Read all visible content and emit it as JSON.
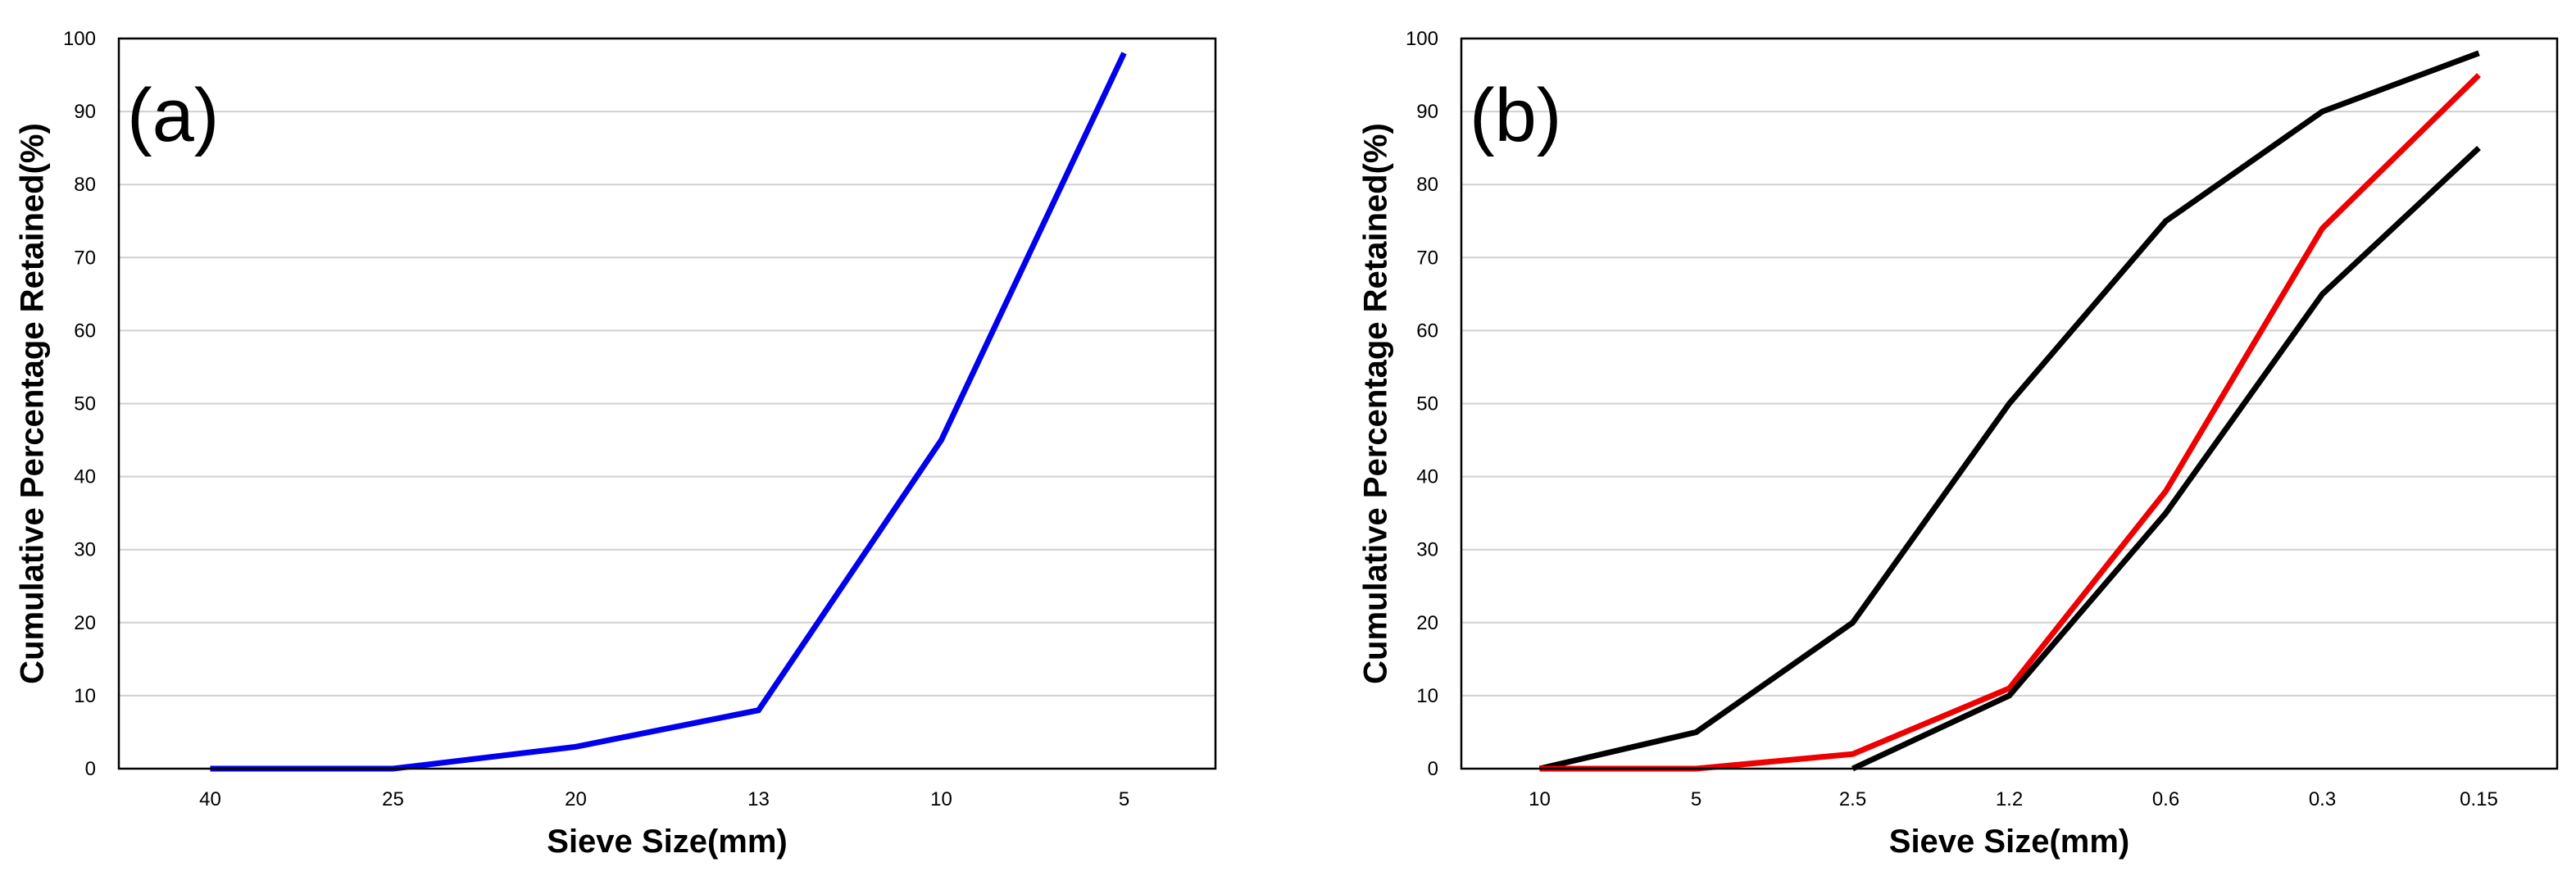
{
  "chart_data": [
    {
      "type": "line",
      "panel_label": "(a)",
      "xlabel": "Sieve Size(mm)",
      "ylabel": "Cumulative Percentage Retained(%)",
      "categories": [
        "40",
        "25",
        "20",
        "13",
        "10",
        "5"
      ],
      "ylim": [
        0,
        100
      ],
      "yticks": [
        0,
        10,
        20,
        30,
        40,
        50,
        60,
        70,
        80,
        90,
        100
      ],
      "grid": "horizontal",
      "series": [
        {
          "values": [
            0,
            0,
            3,
            8,
            45,
            98
          ],
          "color": "#0000ee"
        }
      ]
    },
    {
      "type": "line",
      "panel_label": "(b)",
      "xlabel": "Sieve Size(mm)",
      "ylabel": "Cumulative Percentage Retained(%)",
      "categories": [
        "10",
        "5",
        "2.5",
        "1.2",
        "0.6",
        "0.3",
        "0.15"
      ],
      "ylim": [
        0,
        100
      ],
      "yticks": [
        0,
        10,
        20,
        30,
        40,
        50,
        60,
        70,
        80,
        90,
        100
      ],
      "grid": "horizontal",
      "series": [
        {
          "values": [
            0,
            5,
            20,
            50,
            75,
            90,
            98
          ],
          "color": "#000000"
        },
        {
          "values": [
            0,
            0,
            2,
            11,
            38,
            74,
            95
          ],
          "color": "#ee0000"
        },
        {
          "values": [
            0,
            0,
            0,
            10,
            35,
            65,
            85
          ],
          "color": "#000000",
          "start_index": 2
        }
      ]
    }
  ]
}
